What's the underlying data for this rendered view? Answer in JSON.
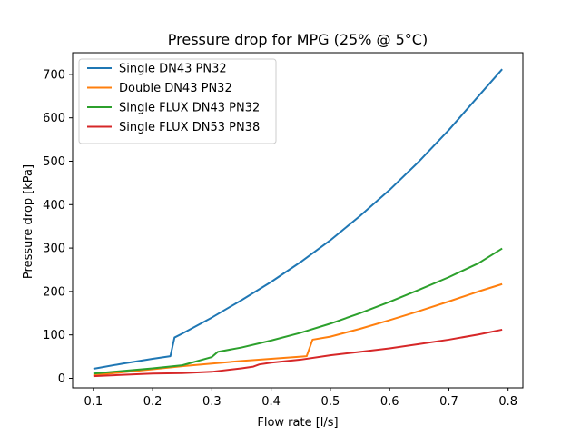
{
  "chart_data": {
    "type": "line",
    "title": "Pressure drop for MPG (25% @ 5°C)",
    "xlabel": "Flow rate [l/s]",
    "ylabel": "Pressure drop [kPa]",
    "xlim": [
      0.065,
      0.825
    ],
    "ylim": [
      -22,
      750
    ],
    "xticks": [
      0.1,
      0.2,
      0.3,
      0.4,
      0.5,
      0.6,
      0.7,
      0.8
    ],
    "xtick_labels": [
      "0.1",
      "0.2",
      "0.3",
      "0.4",
      "0.5",
      "0.6",
      "0.7",
      "0.8"
    ],
    "yticks": [
      0,
      100,
      200,
      300,
      400,
      500,
      600,
      700
    ],
    "ytick_labels": [
      "0",
      "100",
      "200",
      "300",
      "400",
      "500",
      "600",
      "700"
    ],
    "grid": false,
    "legend_position": "top-left",
    "series": [
      {
        "name": "Single DN43 PN32",
        "color": "#1f77b4",
        "x": [
          0.1,
          0.15,
          0.2,
          0.23,
          0.237,
          0.25,
          0.3,
          0.35,
          0.4,
          0.45,
          0.5,
          0.55,
          0.6,
          0.65,
          0.7,
          0.75,
          0.79
        ],
        "y": [
          22,
          34,
          45,
          51,
          94,
          103,
          140,
          180,
          222,
          268,
          318,
          374,
          434,
          500,
          572,
          650,
          712
        ]
      },
      {
        "name": "Double DN43 PN32",
        "color": "#ff7f0e",
        "x": [
          0.1,
          0.15,
          0.2,
          0.25,
          0.3,
          0.35,
          0.4,
          0.45,
          0.46,
          0.47,
          0.5,
          0.55,
          0.6,
          0.65,
          0.7,
          0.75,
          0.79
        ],
        "y": [
          7,
          14,
          21,
          28,
          34,
          40,
          45,
          50,
          51,
          89,
          96,
          114,
          134,
          155,
          177,
          200,
          217
        ]
      },
      {
        "name": "Single FLUX DN43 PN32",
        "color": "#2ca02c",
        "x": [
          0.1,
          0.15,
          0.2,
          0.25,
          0.3,
          0.31,
          0.35,
          0.4,
          0.45,
          0.5,
          0.55,
          0.6,
          0.65,
          0.7,
          0.75,
          0.79
        ],
        "y": [
          11,
          17,
          23,
          30,
          49,
          61,
          71,
          87,
          105,
          126,
          150,
          176,
          204,
          233,
          265,
          299
        ]
      },
      {
        "name": "Single FLUX DN53 PN38",
        "color": "#d62728",
        "x": [
          0.1,
          0.15,
          0.2,
          0.25,
          0.3,
          0.35,
          0.37,
          0.38,
          0.4,
          0.45,
          0.5,
          0.55,
          0.6,
          0.65,
          0.7,
          0.75,
          0.79
        ],
        "y": [
          5,
          8,
          11,
          12,
          15,
          23,
          27,
          32,
          36,
          43,
          53,
          61,
          69,
          79,
          89,
          101,
          112
        ]
      }
    ]
  }
}
